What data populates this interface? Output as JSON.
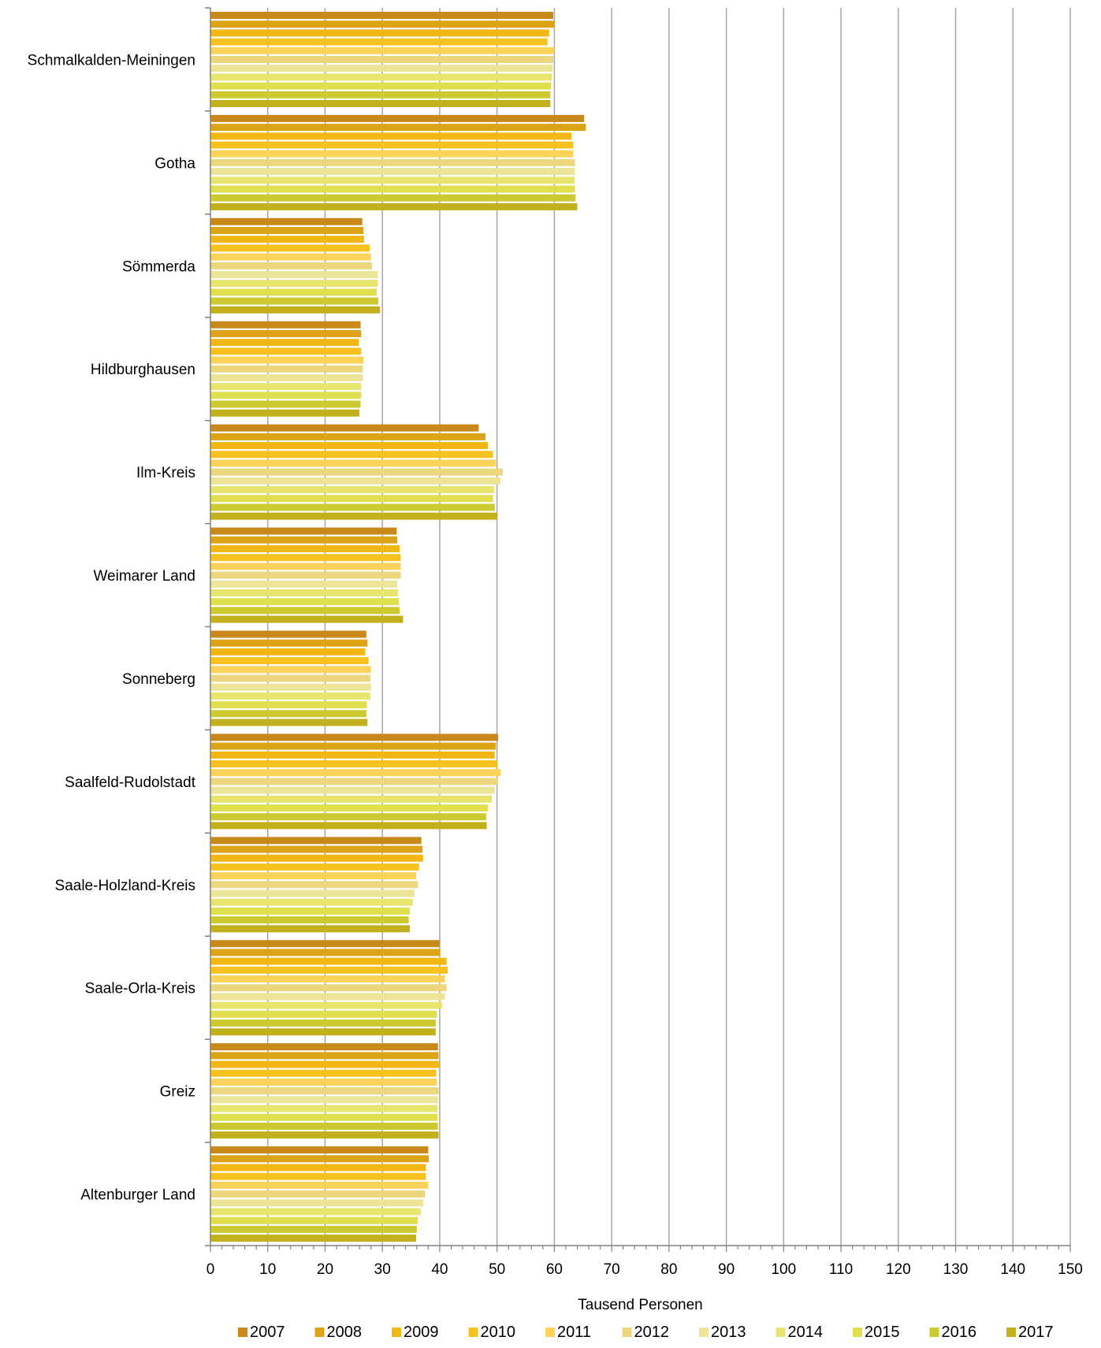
{
  "chart_data": {
    "type": "bar",
    "orientation": "horizontal",
    "xlabel": "Tausend Personen",
    "xlim": [
      0,
      150
    ],
    "xticks": [
      0,
      10,
      20,
      30,
      40,
      50,
      60,
      70,
      80,
      90,
      100,
      110,
      120,
      130,
      140,
      150
    ],
    "grid": "vertical",
    "legend_position": "bottom",
    "categories": [
      "Schmalkalden-Meiningen",
      "Gotha",
      "Sömmerda",
      "Hildburghausen",
      "Ilm-Kreis",
      "Weimarer Land",
      "Sonneberg",
      "Saalfeld-Rudolstadt",
      "Saale-Holzland-Kreis",
      "Saale-Orla-Kreis",
      "Greiz",
      "Altenburger Land"
    ],
    "series": [
      {
        "name": "2007",
        "color": "#c8891a",
        "values": [
          59.8,
          65.2,
          26.5,
          26.2,
          46.8,
          32.5,
          27.2,
          50.2,
          36.8,
          40.0,
          39.7,
          38.0
        ]
      },
      {
        "name": "2008",
        "color": "#dca317",
        "values": [
          60.1,
          65.5,
          26.7,
          26.3,
          48.0,
          32.6,
          27.4,
          49.8,
          37.0,
          40.1,
          39.8,
          38.1
        ]
      },
      {
        "name": "2009",
        "color": "#f2b714",
        "values": [
          59.1,
          63.0,
          26.8,
          25.9,
          48.4,
          33.0,
          27.0,
          49.6,
          37.1,
          41.2,
          40.0,
          37.6
        ]
      },
      {
        "name": "2010",
        "color": "#f7c21f",
        "values": [
          58.8,
          63.3,
          27.8,
          26.3,
          49.3,
          33.2,
          27.6,
          50.1,
          36.4,
          41.4,
          39.4,
          37.6
        ]
      },
      {
        "name": "2011",
        "color": "#fbd35a",
        "values": [
          60.0,
          63.3,
          28.0,
          26.7,
          49.8,
          33.2,
          28.0,
          50.6,
          35.9,
          40.9,
          39.5,
          38.0
        ]
      },
      {
        "name": "2012",
        "color": "#ecd67e",
        "values": [
          59.8,
          63.6,
          28.2,
          26.6,
          51.0,
          33.2,
          27.9,
          50.2,
          36.2,
          41.2,
          39.8,
          37.4
        ]
      },
      {
        "name": "2013",
        "color": "#ece496",
        "values": [
          59.7,
          63.6,
          29.2,
          26.6,
          50.6,
          32.6,
          28.0,
          49.6,
          35.6,
          40.9,
          39.7,
          37.1
        ]
      },
      {
        "name": "2014",
        "color": "#e8e56e",
        "values": [
          59.6,
          63.5,
          29.2,
          26.3,
          49.5,
          32.7,
          27.9,
          49.1,
          35.3,
          40.4,
          39.6,
          36.7
        ]
      },
      {
        "name": "2015",
        "color": "#e0df4e",
        "values": [
          59.4,
          63.6,
          29.0,
          26.3,
          49.3,
          32.9,
          27.3,
          48.4,
          34.8,
          39.5,
          39.6,
          36.2
        ]
      },
      {
        "name": "2016",
        "color": "#ccca30",
        "values": [
          59.3,
          63.7,
          29.3,
          26.2,
          49.6,
          33.0,
          27.2,
          48.1,
          34.6,
          39.3,
          39.7,
          36.0
        ]
      },
      {
        "name": "2017",
        "color": "#c2b01d",
        "values": [
          59.3,
          64.0,
          29.6,
          26.0,
          50.0,
          33.6,
          27.4,
          48.2,
          34.8,
          39.3,
          39.8,
          35.9
        ]
      }
    ]
  }
}
